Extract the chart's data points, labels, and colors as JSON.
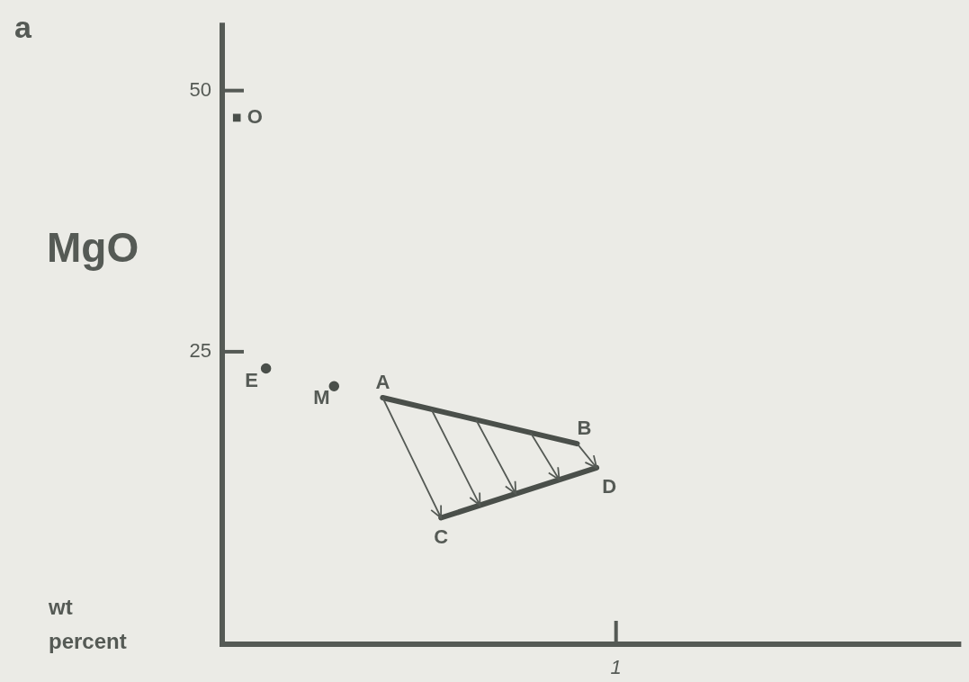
{
  "chart_data": {
    "type": "scatter",
    "ylabel": "MgO",
    "categories": [
      null,
      null,
      null,
      null,
      null,
      null,
      null,
      null,
      null,
      null,
      null,
      null,
      null,
      null,
      null,
      null,
      null,
      null,
      null,
      null,
      null,
      null,
      null,
      null,
      null,
      null,
      null,
      null,
      null,
      null,
      null,
      null,
      null,
      null,
      null,
      null,
      null,
      null,
      null,
      null,
      "1",
      null,
      null,
      null,
      null,
      null,
      null,
      null,
      null,
      null,
      null,
      null,
      null,
      null,
      null,
      null,
      null,
      null,
      null,
      null,
      null,
      null,
      null,
      null,
      null,
      null,
      null,
      null,
      null,
      null,
      null,
      null,
      null,
      null,
      null,
      null
    ],
    "ylim": [
      -3,
      56.5
    ],
    "yticks": [
      25,
      50
    ],
    "series": [
      {
        "type": "scatter",
        "marker": "square",
        "color": "#4a4f4a",
        "values": [
          null,
          47.4,
          null,
          null,
          null,
          null,
          null,
          null,
          null,
          null,
          null,
          null,
          null,
          null,
          null,
          null,
          null,
          null,
          null,
          null,
          null,
          null,
          null,
          null,
          null,
          null,
          null,
          null,
          null,
          null,
          null,
          null,
          null,
          null,
          null,
          null,
          null,
          null,
          null,
          null,
          null,
          null,
          null,
          null,
          null,
          null,
          null,
          null,
          null,
          null,
          null,
          null,
          null,
          null,
          null,
          null,
          null,
          null,
          null,
          null,
          null,
          null,
          null,
          null,
          null,
          null,
          null,
          null,
          null,
          null,
          null,
          null,
          null,
          null,
          null,
          null
        ]
      },
      {
        "type": "scatter",
        "marker": "circle",
        "color": "#4a4f4a",
        "values": [
          null,
          null,
          null,
          null,
          23.4,
          null,
          null,
          null,
          null,
          null,
          null,
          null,
          null,
          null,
          null,
          null,
          null,
          null,
          null,
          null,
          null,
          null,
          null,
          null,
          null,
          null,
          null,
          null,
          null,
          null,
          null,
          null,
          null,
          null,
          null,
          null,
          null,
          null,
          null,
          null,
          null,
          null,
          null,
          null,
          null,
          null,
          null,
          null,
          null,
          null,
          null,
          null,
          null,
          null,
          null,
          null,
          null,
          null,
          null,
          null,
          null,
          null,
          null,
          null,
          null,
          null,
          null,
          null,
          null,
          null,
          null,
          null,
          null,
          null,
          null,
          null
        ]
      },
      {
        "type": "scatter",
        "marker": "circle",
        "color": "#4a4f4a",
        "values": [
          null,
          null,
          null,
          null,
          null,
          null,
          null,
          null,
          null,
          null,
          null,
          21.7,
          null,
          null,
          null,
          null,
          null,
          null,
          null,
          null,
          null,
          null,
          null,
          null,
          null,
          null,
          null,
          null,
          null,
          null,
          null,
          null,
          null,
          null,
          null,
          null,
          null,
          null,
          null,
          null,
          null,
          null,
          null,
          null,
          null,
          null,
          null,
          null,
          null,
          null,
          null,
          null,
          null,
          null,
          null,
          null,
          null,
          null,
          null,
          null,
          null,
          null,
          null,
          null,
          null,
          null,
          null,
          null,
          null,
          null,
          null,
          null,
          null,
          null,
          null,
          null
        ]
      },
      {
        "type": "line",
        "marker": "none",
        "color": "#4a4f4a",
        "values": [
          null,
          null,
          null,
          null,
          null,
          null,
          null,
          null,
          null,
          null,
          null,
          null,
          null,
          null,
          null,
          null,
          20.6,
          null,
          null,
          null,
          null,
          null,
          null,
          null,
          null,
          null,
          null,
          null,
          null,
          null,
          null,
          null,
          null,
          null,
          null,
          null,
          16.2,
          null,
          null,
          null,
          null,
          null,
          null,
          null,
          null,
          null,
          null,
          null,
          null,
          null,
          null,
          null,
          null,
          null,
          null,
          null,
          null,
          null,
          null,
          null,
          null,
          null,
          null,
          null,
          null,
          null,
          null,
          null,
          null,
          null,
          null,
          null,
          null,
          null,
          null,
          null
        ]
      },
      {
        "type": "line",
        "marker": "none",
        "color": "#4a4f4a",
        "values": [
          null,
          null,
          null,
          null,
          null,
          null,
          null,
          null,
          null,
          null,
          null,
          null,
          null,
          null,
          null,
          null,
          null,
          null,
          null,
          null,
          null,
          null,
          9.1,
          null,
          null,
          null,
          null,
          null,
          null,
          null,
          null,
          null,
          null,
          null,
          null,
          null,
          null,
          null,
          13.9,
          null,
          null,
          null,
          null,
          null,
          null,
          null,
          null,
          null,
          null,
          null,
          null,
          null,
          null,
          null,
          null,
          null,
          null,
          null,
          null,
          null,
          null,
          null,
          null,
          null,
          null,
          null,
          null,
          null,
          null,
          null,
          null,
          null,
          null,
          null,
          null,
          null
        ]
      }
    ],
    "annotations": [
      "a",
      "wt percent",
      "O",
      "E",
      "M",
      "A",
      "B",
      "C",
      "D"
    ]
  }
}
